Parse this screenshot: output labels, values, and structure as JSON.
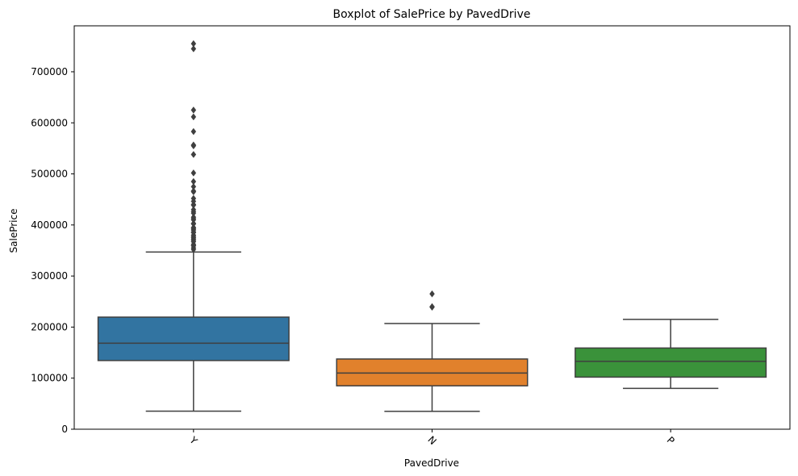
{
  "chart_data": {
    "type": "boxplot",
    "title": "Boxplot of SalePrice by PavedDrive",
    "xlabel": "PavedDrive",
    "ylabel": "SalePrice",
    "ylim": [
      0,
      790000
    ],
    "yticks": [
      0,
      100000,
      200000,
      300000,
      400000,
      500000,
      600000,
      700000
    ],
    "ytick_labels": [
      "0",
      "100000",
      "200000",
      "300000",
      "400000",
      "500000",
      "600000",
      "700000"
    ],
    "categories": [
      "Y",
      "N",
      "P"
    ],
    "grid": false,
    "legend": "none",
    "boxes": [
      {
        "category": "Y",
        "color": "#3274a1",
        "whisker_low": 35311,
        "q1": 134500,
        "median": 168500,
        "q3": 219500,
        "whisker_high": 347000,
        "outliers": [
          352000,
          355000,
          359100,
          360000,
          361919,
          367294,
          369900,
          372500,
          375000,
          377500,
          380000,
          385000,
          386250,
          390000,
          392000,
          394432,
          395000,
          402000,
          403000,
          410000,
          412500,
          415298,
          423000,
          426000,
          430000,
          438780,
          440000,
          446261,
          451950,
          465000,
          466500,
          475000,
          485000,
          501837,
          538000,
          555000,
          556581,
          582933,
          611657,
          625000,
          745000,
          755000
        ]
      },
      {
        "category": "N",
        "color": "#e1812c",
        "whisker_low": 34900,
        "q1": 85000,
        "median": 110000,
        "q3": 137500,
        "whisker_high": 207000,
        "outliers": [
          239000,
          240000,
          265000
        ]
      },
      {
        "category": "P",
        "color": "#3a923a",
        "whisker_low": 80000,
        "q1": 102000,
        "median": 133000,
        "q3": 159000,
        "whisker_high": 215000,
        "outliers": []
      }
    ]
  }
}
